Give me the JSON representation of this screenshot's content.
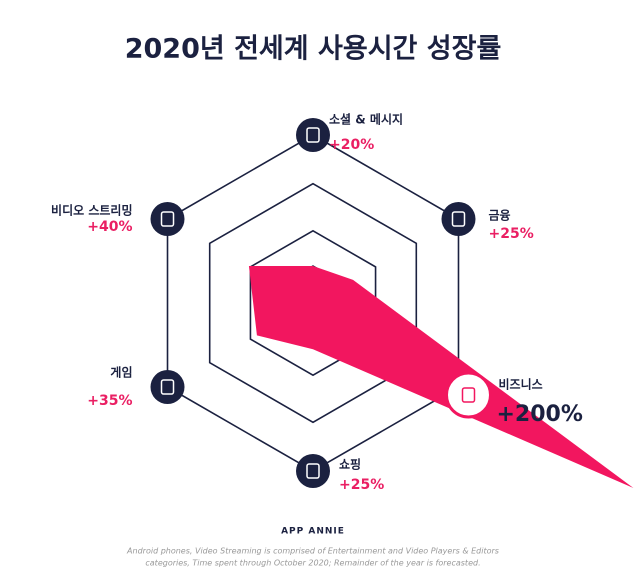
{
  "chart_data": {
    "type": "radar",
    "title": "2020년 전세계 사용시간 성장률",
    "categories": [
      "소셜 & 메시지",
      "금융",
      "비즈니스",
      "쇼핑",
      "게임",
      "비디오 스트리밍"
    ],
    "values": [
      20,
      25,
      200,
      25,
      35,
      40
    ],
    "value_labels": [
      "+20%",
      "+25%",
      "+200%",
      "+25%",
      "+35%",
      "+40%"
    ],
    "color": "#f2165f",
    "source": "APP ANNIE",
    "footnote": [
      "Android phones, Video Streaming is comprised of Entertainment and Video Players & Editors",
      "categories, Time spent through October 2020; Remainder of the year is forecasted."
    ]
  }
}
